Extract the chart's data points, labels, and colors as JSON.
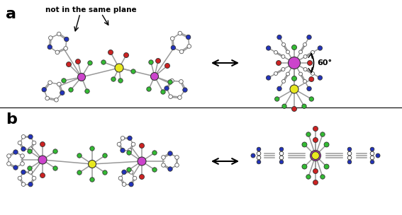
{
  "bg_color": "#ffffff",
  "atom_colors": {
    "Zn": "#cc44cc",
    "Mo": "#e8e820",
    "Cu": "#cc44cc",
    "Ti": "#e8e820",
    "N": "#2233bb",
    "O": "#cc2222",
    "F": "#33bb33",
    "C": "#ffffff",
    "H": "#ffffff",
    "bond": "#999999"
  },
  "title_a": "a",
  "title_b": "b",
  "annotation": "not in the same plane",
  "angle_label": "60°",
  "arrow_color": "#000000"
}
